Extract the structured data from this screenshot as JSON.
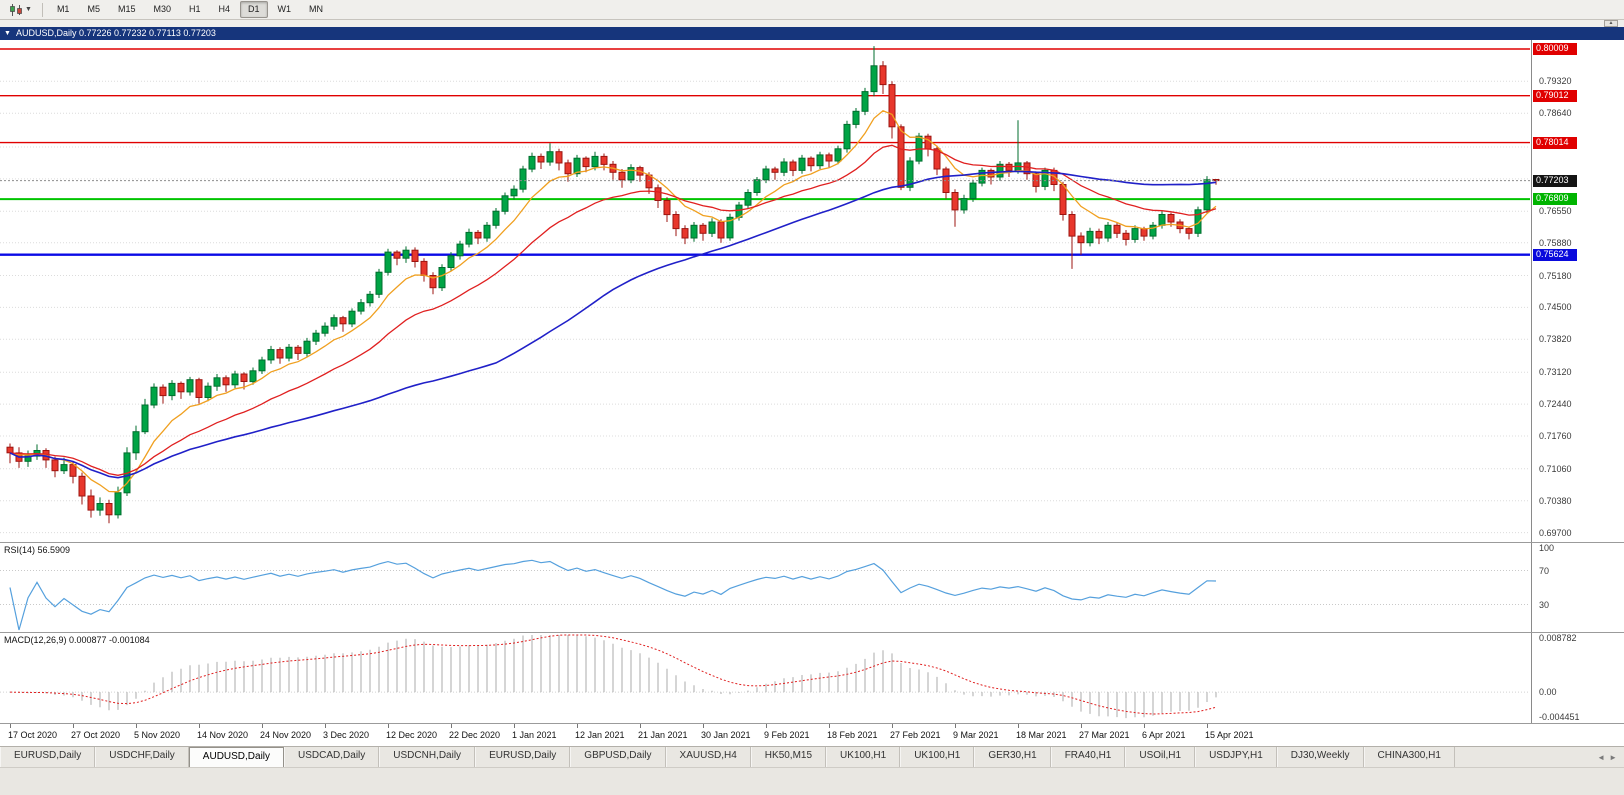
{
  "toolbar": {
    "chart_type_icon": "candlestick-chart-icon",
    "timeframes": [
      "M1",
      "M5",
      "M15",
      "M30",
      "H1",
      "H4",
      "D1",
      "W1",
      "MN"
    ],
    "active_timeframe": "D1"
  },
  "window": {
    "title": "AUDUSD,Daily 0.77226 0.77232 0.77113 0.77203",
    "symbol": "AUDUSD,Daily",
    "ohlc_display": {
      "open": "0.77226",
      "high": "0.77232",
      "low": "0.77113",
      "close": "0.77203"
    }
  },
  "colors": {
    "up": "#00a445",
    "up_border": "#006e2e",
    "down": "#e8372c",
    "down_border": "#9c1410",
    "ma_fast": "#f0a020",
    "ma_mid": "#e02020",
    "ma_slow": "#2020c8",
    "rsi_line": "#55a0dd",
    "macd_hist": "#ababab",
    "macd_signal": "#e02020",
    "grid": "#dcdcdc",
    "current_price_line": "#8c8c8c"
  },
  "price_axis": {
    "labels": [
      "0.79320",
      "0.78640",
      "0.76550",
      "0.75880",
      "0.75180",
      "0.74500",
      "0.73820",
      "0.73120",
      "0.72440",
      "0.71760",
      "0.71060",
      "0.70380",
      "0.69700"
    ],
    "grid_prices": [
      0.7932,
      0.7864,
      0.7792,
      0.7724,
      0.7655,
      0.7588,
      0.7518,
      0.745,
      0.7382,
      0.7312,
      0.7244,
      0.7176,
      0.7106,
      0.7038,
      0.697
    ],
    "badges": [
      {
        "text": "0.80009",
        "price": 0.80009,
        "color": "#e00000"
      },
      {
        "text": "0.79012",
        "price": 0.79012,
        "color": "#e00000"
      },
      {
        "text": "0.78014",
        "price": 0.78014,
        "color": "#e00000"
      },
      {
        "text": "0.77203",
        "price": 0.77203,
        "color": "#141414"
      },
      {
        "text": "0.76809",
        "price": 0.76809,
        "color": "#00b400"
      },
      {
        "text": "0.75624",
        "price": 0.75624,
        "color": "#0a0adc"
      }
    ]
  },
  "hlines": [
    {
      "price": 0.80009,
      "color": "#e00000",
      "width": 1.4
    },
    {
      "price": 0.79012,
      "color": "#e00000",
      "width": 1.4
    },
    {
      "price": 0.78014,
      "color": "#e00000",
      "width": 1.4
    },
    {
      "price": 0.76809,
      "color": "#00c400",
      "width": 2
    },
    {
      "price": 0.75624,
      "color": "#0a0ae6",
      "width": 2.4
    }
  ],
  "current_price": 0.77203,
  "rsi_panel": {
    "label": "RSI(14) 56.5909",
    "period": 14,
    "levels": [
      "100",
      "70",
      "30"
    ],
    "level_values": [
      100,
      70,
      30
    ]
  },
  "macd_panel": {
    "label": "MACD(12,26,9) 0.000877 -0.001084",
    "fast": 12,
    "slow": 26,
    "signal": 9,
    "axis_labels": [
      "0.008782",
      "0.00",
      "-0.004451"
    ],
    "axis_values": [
      0.008782,
      0,
      -0.004451
    ],
    "max": 0.008782,
    "min": -0.004451
  },
  "time_axis": {
    "bars_per_label": 7,
    "labels": [
      "17 Oct 2020",
      "27 Oct 2020",
      "5 Nov 2020",
      "14 Nov 2020",
      "24 Nov 2020",
      "3 Dec 2020",
      "12 Dec 2020",
      "22 Dec 2020",
      "1 Jan 2021",
      "12 Jan 2021",
      "21 Jan 2021",
      "30 Jan 2021",
      "9 Feb 2021",
      "18 Feb 2021",
      "27 Feb 2021",
      "9 Mar 2021",
      "18 Mar 2021",
      "27 Mar 2021",
      "6 Apr 2021",
      "15 Apr 2021"
    ]
  },
  "tabs": {
    "active_index": 2,
    "items": [
      "EURUSD,Daily",
      "USDCHF,Daily",
      "AUDUSD,Daily",
      "USDCAD,Daily",
      "USDCNH,Daily",
      "EURUSD,Daily",
      "GBPUSD,Daily",
      "XAUUSD,H4",
      "HK50,M15",
      "UK100,H1",
      "UK100,H1",
      "GER30,H1",
      "FRA40,H1",
      "USOil,H1",
      "USDJPY,H1",
      "DJ30,Weekly",
      "CHINA300,H1"
    ],
    "scroll_left_icon": "◄",
    "scroll_right_icon": "►"
  },
  "chart_data": {
    "type": "candlestick",
    "symbol": "AUDUSD",
    "timeframe": "Daily",
    "price_range": {
      "top": 0.802,
      "bottom": 0.695
    },
    "moving_averages": [
      {
        "name": "fast-ema",
        "period": 8,
        "color_key": "ma_fast"
      },
      {
        "name": "mid-ema",
        "period": 21,
        "color_key": "ma_mid"
      },
      {
        "name": "slow-sma",
        "period": 55,
        "color_key": "ma_slow"
      }
    ],
    "candles": [
      [
        0.7152,
        0.716,
        0.7118,
        0.714
      ],
      [
        0.714,
        0.7152,
        0.7108,
        0.7122
      ],
      [
        0.7122,
        0.7145,
        0.711,
        0.7133
      ],
      [
        0.7133,
        0.7158,
        0.7125,
        0.7145
      ],
      [
        0.7145,
        0.715,
        0.7108,
        0.7125
      ],
      [
        0.7125,
        0.7132,
        0.7088,
        0.7102
      ],
      [
        0.7102,
        0.713,
        0.7095,
        0.7115
      ],
      [
        0.7115,
        0.7122,
        0.7075,
        0.709
      ],
      [
        0.709,
        0.7098,
        0.703,
        0.7048
      ],
      [
        0.7048,
        0.7062,
        0.7002,
        0.7018
      ],
      [
        0.7018,
        0.7045,
        0.7006,
        0.7032
      ],
      [
        0.7032,
        0.704,
        0.699,
        0.7008
      ],
      [
        0.7008,
        0.7068,
        0.7,
        0.7055
      ],
      [
        0.7055,
        0.7152,
        0.7048,
        0.714
      ],
      [
        0.714,
        0.7198,
        0.7125,
        0.7185
      ],
      [
        0.7185,
        0.7255,
        0.718,
        0.7242
      ],
      [
        0.7242,
        0.7288,
        0.7235,
        0.728
      ],
      [
        0.728,
        0.7286,
        0.7245,
        0.7262
      ],
      [
        0.7262,
        0.7295,
        0.7252,
        0.7288
      ],
      [
        0.7288,
        0.7292,
        0.7255,
        0.727
      ],
      [
        0.727,
        0.7302,
        0.7262,
        0.7296
      ],
      [
        0.7296,
        0.73,
        0.7245,
        0.7258
      ],
      [
        0.7258,
        0.729,
        0.725,
        0.7282
      ],
      [
        0.7282,
        0.7308,
        0.7272,
        0.73
      ],
      [
        0.73,
        0.7305,
        0.727,
        0.7285
      ],
      [
        0.7285,
        0.7315,
        0.7278,
        0.7308
      ],
      [
        0.7308,
        0.7312,
        0.7275,
        0.7292
      ],
      [
        0.7292,
        0.7322,
        0.7285,
        0.7315
      ],
      [
        0.7315,
        0.7345,
        0.7308,
        0.7338
      ],
      [
        0.7338,
        0.7368,
        0.733,
        0.736
      ],
      [
        0.736,
        0.7365,
        0.733,
        0.7342
      ],
      [
        0.7342,
        0.7372,
        0.7335,
        0.7365
      ],
      [
        0.7365,
        0.737,
        0.7338,
        0.7352
      ],
      [
        0.7352,
        0.7385,
        0.7345,
        0.7378
      ],
      [
        0.7378,
        0.7402,
        0.737,
        0.7395
      ],
      [
        0.7395,
        0.7418,
        0.7388,
        0.741
      ],
      [
        0.741,
        0.7435,
        0.7402,
        0.7428
      ],
      [
        0.7428,
        0.7432,
        0.7398,
        0.7415
      ],
      [
        0.7415,
        0.7448,
        0.7408,
        0.7442
      ],
      [
        0.7442,
        0.7468,
        0.7435,
        0.746
      ],
      [
        0.746,
        0.7485,
        0.7452,
        0.7478
      ],
      [
        0.7478,
        0.7532,
        0.747,
        0.7525
      ],
      [
        0.7525,
        0.7575,
        0.7518,
        0.7568
      ],
      [
        0.7568,
        0.7572,
        0.754,
        0.7555
      ],
      [
        0.7555,
        0.758,
        0.7545,
        0.7572
      ],
      [
        0.7572,
        0.7578,
        0.7535,
        0.7548
      ],
      [
        0.7548,
        0.7555,
        0.7505,
        0.7518
      ],
      [
        0.7518,
        0.7525,
        0.7478,
        0.7492
      ],
      [
        0.7492,
        0.7542,
        0.7485,
        0.7535
      ],
      [
        0.7535,
        0.7568,
        0.7528,
        0.756
      ],
      [
        0.756,
        0.7592,
        0.7552,
        0.7585
      ],
      [
        0.7585,
        0.7618,
        0.7578,
        0.761
      ],
      [
        0.761,
        0.7615,
        0.7585,
        0.7598
      ],
      [
        0.7598,
        0.7632,
        0.759,
        0.7625
      ],
      [
        0.7625,
        0.7662,
        0.7618,
        0.7655
      ],
      [
        0.7655,
        0.7695,
        0.7648,
        0.7688
      ],
      [
        0.7688,
        0.771,
        0.768,
        0.7702
      ],
      [
        0.7702,
        0.7752,
        0.7695,
        0.7745
      ],
      [
        0.7745,
        0.778,
        0.7738,
        0.7772
      ],
      [
        0.7772,
        0.7778,
        0.7745,
        0.776
      ],
      [
        0.776,
        0.78,
        0.7752,
        0.7782
      ],
      [
        0.7782,
        0.7788,
        0.7742,
        0.7758
      ],
      [
        0.7758,
        0.7765,
        0.7718,
        0.7735
      ],
      [
        0.7735,
        0.7775,
        0.7728,
        0.7768
      ],
      [
        0.7768,
        0.7772,
        0.7738,
        0.775
      ],
      [
        0.775,
        0.7782,
        0.7742,
        0.7772
      ],
      [
        0.7772,
        0.7778,
        0.7742,
        0.7755
      ],
      [
        0.7755,
        0.7762,
        0.7722,
        0.7738
      ],
      [
        0.7738,
        0.7745,
        0.7705,
        0.7722
      ],
      [
        0.7722,
        0.7755,
        0.7715,
        0.7748
      ],
      [
        0.7748,
        0.7752,
        0.7718,
        0.7732
      ],
      [
        0.7732,
        0.7738,
        0.7692,
        0.7705
      ],
      [
        0.7705,
        0.7712,
        0.7662,
        0.7678
      ],
      [
        0.7678,
        0.7685,
        0.7632,
        0.7648
      ],
      [
        0.7648,
        0.7655,
        0.7602,
        0.7618
      ],
      [
        0.7618,
        0.7625,
        0.7585,
        0.7598
      ],
      [
        0.7598,
        0.7632,
        0.759,
        0.7625
      ],
      [
        0.7625,
        0.763,
        0.7592,
        0.7608
      ],
      [
        0.7608,
        0.764,
        0.76,
        0.7632
      ],
      [
        0.7632,
        0.7638,
        0.7588,
        0.7598
      ],
      [
        0.7598,
        0.765,
        0.7592,
        0.7642
      ],
      [
        0.7642,
        0.7675,
        0.7635,
        0.7668
      ],
      [
        0.7668,
        0.7702,
        0.766,
        0.7695
      ],
      [
        0.7695,
        0.7728,
        0.7688,
        0.7722
      ],
      [
        0.7722,
        0.7752,
        0.7715,
        0.7745
      ],
      [
        0.7745,
        0.775,
        0.7722,
        0.7738
      ],
      [
        0.7738,
        0.7768,
        0.773,
        0.776
      ],
      [
        0.776,
        0.7765,
        0.773,
        0.7742
      ],
      [
        0.7742,
        0.7775,
        0.7735,
        0.7768
      ],
      [
        0.7768,
        0.7772,
        0.774,
        0.7752
      ],
      [
        0.7752,
        0.7782,
        0.7745,
        0.7775
      ],
      [
        0.7775,
        0.778,
        0.7748,
        0.7762
      ],
      [
        0.7762,
        0.7795,
        0.7755,
        0.7788
      ],
      [
        0.7788,
        0.7848,
        0.778,
        0.784
      ],
      [
        0.784,
        0.7875,
        0.7832,
        0.7868
      ],
      [
        0.7868,
        0.7918,
        0.786,
        0.791
      ],
      [
        0.791,
        0.8007,
        0.79,
        0.7965
      ],
      [
        0.7965,
        0.7975,
        0.7905,
        0.7925
      ],
      [
        0.7925,
        0.7932,
        0.781,
        0.7835
      ],
      [
        0.7835,
        0.784,
        0.77,
        0.7706
      ],
      [
        0.7706,
        0.777,
        0.7698,
        0.7762
      ],
      [
        0.7762,
        0.7822,
        0.7755,
        0.7815
      ],
      [
        0.7815,
        0.782,
        0.7772,
        0.7788
      ],
      [
        0.7788,
        0.7795,
        0.7732,
        0.7745
      ],
      [
        0.7745,
        0.775,
        0.7682,
        0.7695
      ],
      [
        0.7695,
        0.7702,
        0.7622,
        0.7658
      ],
      [
        0.7658,
        0.769,
        0.765,
        0.7682
      ],
      [
        0.7682,
        0.7722,
        0.7675,
        0.7715
      ],
      [
        0.7715,
        0.7748,
        0.7708,
        0.7742
      ],
      [
        0.7742,
        0.7746,
        0.7712,
        0.7728
      ],
      [
        0.7728,
        0.7762,
        0.772,
        0.7755
      ],
      [
        0.7755,
        0.776,
        0.7728,
        0.7742
      ],
      [
        0.7742,
        0.7849,
        0.7735,
        0.7758
      ],
      [
        0.7758,
        0.7762,
        0.7722,
        0.7735
      ],
      [
        0.7735,
        0.774,
        0.7695,
        0.7708
      ],
      [
        0.7708,
        0.7748,
        0.77,
        0.7742
      ],
      [
        0.7742,
        0.7748,
        0.7698,
        0.7712
      ],
      [
        0.7712,
        0.7718,
        0.7635,
        0.7648
      ],
      [
        0.7648,
        0.7655,
        0.7532,
        0.7602
      ],
      [
        0.7602,
        0.761,
        0.7562,
        0.7588
      ],
      [
        0.7588,
        0.762,
        0.758,
        0.7612
      ],
      [
        0.7612,
        0.7618,
        0.7585,
        0.7598
      ],
      [
        0.7598,
        0.7632,
        0.759,
        0.7625
      ],
      [
        0.7625,
        0.763,
        0.7598,
        0.7608
      ],
      [
        0.7608,
        0.7615,
        0.7582,
        0.7595
      ],
      [
        0.7595,
        0.7625,
        0.7588,
        0.7618
      ],
      [
        0.7618,
        0.7622,
        0.7592,
        0.7602
      ],
      [
        0.7602,
        0.7632,
        0.7595,
        0.7625
      ],
      [
        0.7625,
        0.7655,
        0.7618,
        0.7648
      ],
      [
        0.7648,
        0.7652,
        0.7622,
        0.7632
      ],
      [
        0.7632,
        0.7638,
        0.7608,
        0.7618
      ],
      [
        0.7618,
        0.7622,
        0.7595,
        0.7608
      ],
      [
        0.7608,
        0.7665,
        0.76,
        0.7658
      ],
      [
        0.7658,
        0.773,
        0.765,
        0.7722
      ],
      [
        0.77226,
        0.77232,
        0.77113,
        0.77203
      ]
    ]
  }
}
